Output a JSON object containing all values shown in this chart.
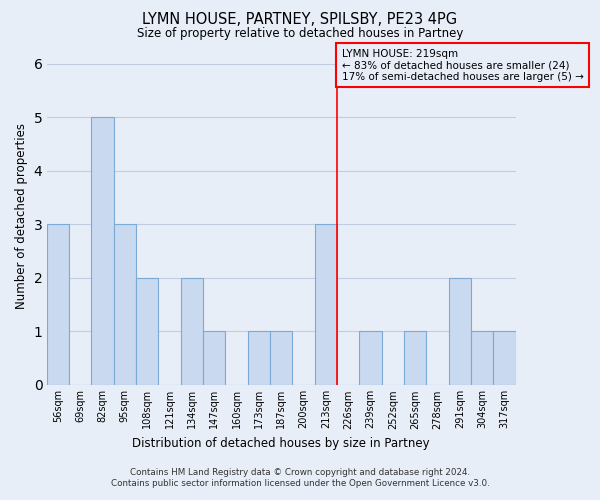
{
  "title": "LYMN HOUSE, PARTNEY, SPILSBY, PE23 4PG",
  "subtitle": "Size of property relative to detached houses in Partney",
  "xlabel": "Distribution of detached houses by size in Partney",
  "ylabel": "Number of detached properties",
  "categories": [
    "56sqm",
    "69sqm",
    "82sqm",
    "95sqm",
    "108sqm",
    "121sqm",
    "134sqm",
    "147sqm",
    "160sqm",
    "173sqm",
    "187sqm",
    "200sqm",
    "213sqm",
    "226sqm",
    "239sqm",
    "252sqm",
    "265sqm",
    "278sqm",
    "291sqm",
    "304sqm",
    "317sqm"
  ],
  "values": [
    3,
    0,
    5,
    3,
    2,
    0,
    2,
    1,
    0,
    1,
    1,
    0,
    3,
    0,
    1,
    0,
    1,
    0,
    2,
    1,
    1
  ],
  "bar_facecolor": "#c8d9f0",
  "bar_edgecolor": "#7baad4",
  "marker_index": 12,
  "marker_color": "red",
  "annotation_title": "LYMN HOUSE: 219sqm",
  "annotation_line1": "← 83% of detached houses are smaller (24)",
  "annotation_line2": "17% of semi-detached houses are larger (5) →",
  "annotation_box_color": "red",
  "ylim": [
    0,
    6.3
  ],
  "yticks": [
    0,
    1,
    2,
    3,
    4,
    5,
    6
  ],
  "background_color": "#e8eef8",
  "grid_color": "#c0cce0",
  "footer1": "Contains HM Land Registry data © Crown copyright and database right 2024.",
  "footer2": "Contains public sector information licensed under the Open Government Licence v3.0."
}
